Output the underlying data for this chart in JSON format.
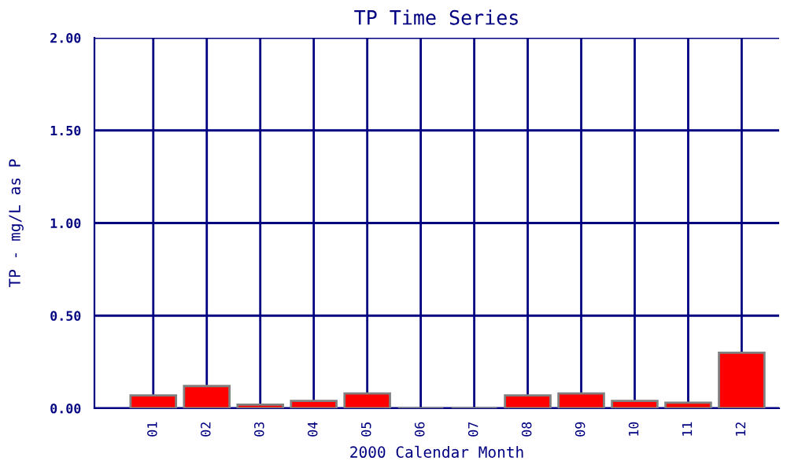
{
  "chart_data": {
    "type": "bar",
    "title": "TP Time Series",
    "xlabel": "2000 Calendar Month",
    "ylabel": "TP - mg/L as P",
    "categories": [
      "01",
      "02",
      "03",
      "04",
      "05",
      "06",
      "07",
      "08",
      "09",
      "10",
      "11",
      "12"
    ],
    "values": [
      0.07,
      0.12,
      0.02,
      0.04,
      0.08,
      0,
      0,
      0.07,
      0.08,
      0.04,
      0.03,
      0.3
    ],
    "colors": [
      "#ff0000",
      "#ff0000",
      "#ff0000",
      "#ff0000",
      "#ff0000",
      "#808080",
      "#808080",
      "#ff0000",
      "#ff0000",
      "#ff0000",
      "#ff0000",
      "#ff0000"
    ],
    "ylim": [
      0,
      2
    ],
    "yticks": [
      {
        "value": 0,
        "label": "0.00"
      },
      {
        "value": 0.5,
        "label": "0.50"
      },
      {
        "value": 1,
        "label": "1.00"
      },
      {
        "value": 1.5,
        "label": "1.50"
      },
      {
        "value": 2,
        "label": "2.00"
      }
    ],
    "grid": true
  }
}
